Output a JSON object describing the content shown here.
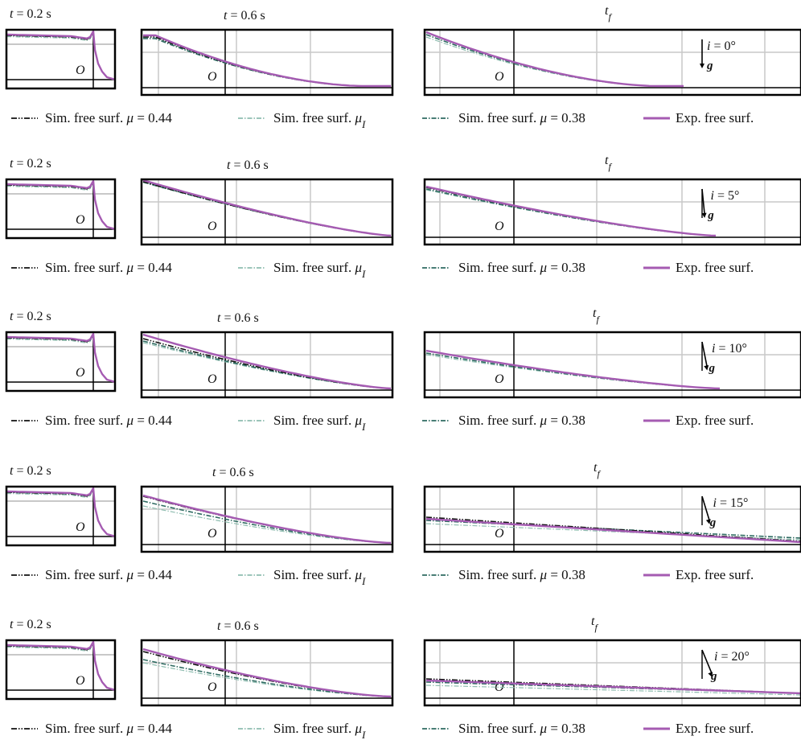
{
  "figure": {
    "origin_label": "O",
    "colors": {
      "sim_044": "#111111",
      "sim_mui": "#8fbdb0",
      "sim_038": "#2f6b62",
      "exp": "#a55bb2",
      "grid": "#c8c8c8",
      "frame": "#000000",
      "label": "#111111"
    },
    "legend": [
      {
        "key": "sim_044",
        "prefix": "Sim. free surf. ",
        "mu": "μ",
        "suffix": " = 0.44",
        "sub": ""
      },
      {
        "key": "sim_mui",
        "prefix": "Sim. free surf. ",
        "mu": "μ",
        "suffix": "",
        "sub": "I"
      },
      {
        "key": "sim_038",
        "prefix": "Sim. free surf. ",
        "mu": "μ",
        "suffix": " = 0.38",
        "sub": ""
      },
      {
        "key": "exp",
        "prefix": "Exp. free surf.",
        "mu": "",
        "suffix": "",
        "sub": ""
      }
    ],
    "time_labels": {
      "t02": "t = 0.2 s",
      "t06": "t = 0.6 s",
      "tf": "t",
      "tf_sub": "f"
    },
    "gravity_label": "g",
    "rows": [
      {
        "inclination": "i = 0°",
        "angle_deg": 0
      },
      {
        "inclination": "i = 5°",
        "angle_deg": 5
      },
      {
        "inclination": "i = 10°",
        "angle_deg": 10
      },
      {
        "inclination": "i = 15°",
        "angle_deg": 15
      },
      {
        "inclination": "i = 20°",
        "angle_deg": 20
      }
    ]
  },
  "chart_data": {
    "type": "line",
    "series": [
      {
        "key": "sim_044"
      },
      {
        "key": "sim_mui"
      },
      {
        "key": "sim_038"
      },
      {
        "key": "exp"
      }
    ]
  }
}
